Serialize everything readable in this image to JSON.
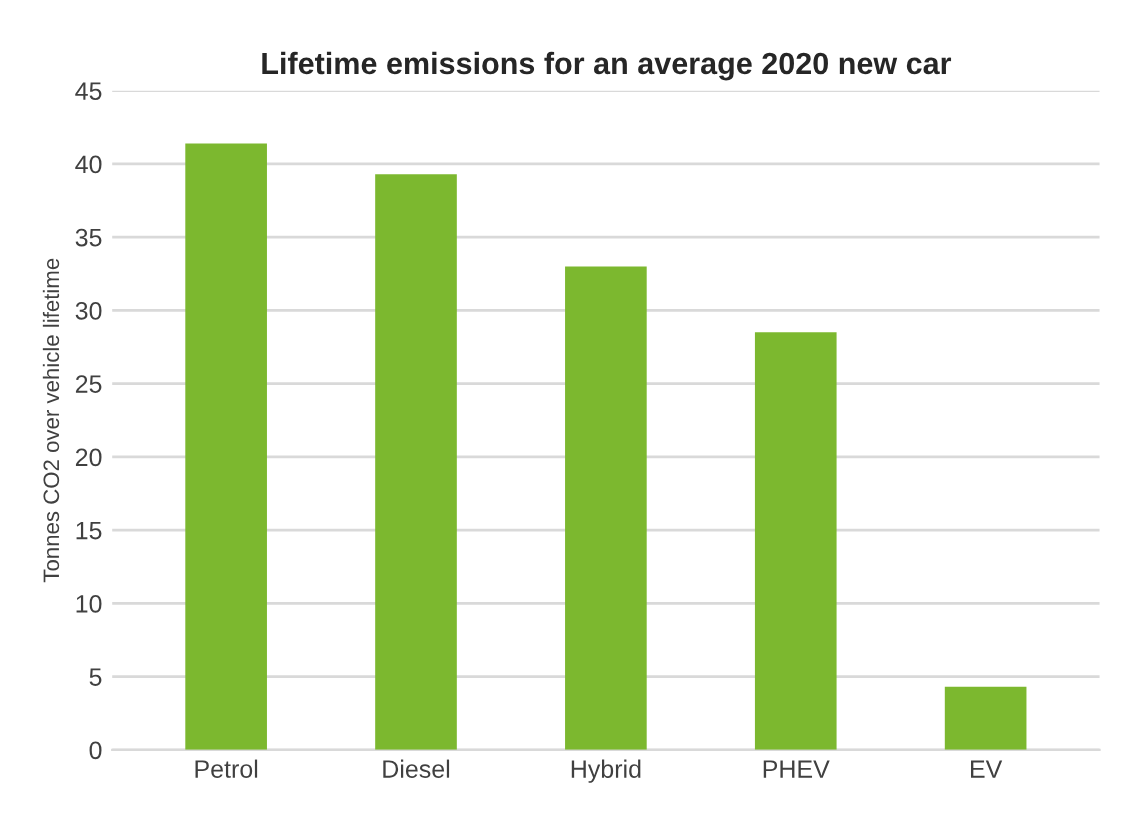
{
  "chart_data": {
    "type": "bar",
    "title": "Lifetime emissions for an average 2020 new car",
    "ylabel": "Tonnes CO2 over vehicle lifetime",
    "categories": [
      "Petrol",
      "Diesel",
      "Hybrid",
      "PHEV",
      "EV"
    ],
    "values": [
      41.4,
      39.3,
      33.0,
      28.5,
      4.3
    ],
    "color": "#7cb82f",
    "ylim": [
      0,
      45
    ],
    "yticks": [
      0,
      5,
      10,
      15,
      20,
      25,
      30,
      35,
      40,
      45
    ],
    "grid": "y"
  }
}
